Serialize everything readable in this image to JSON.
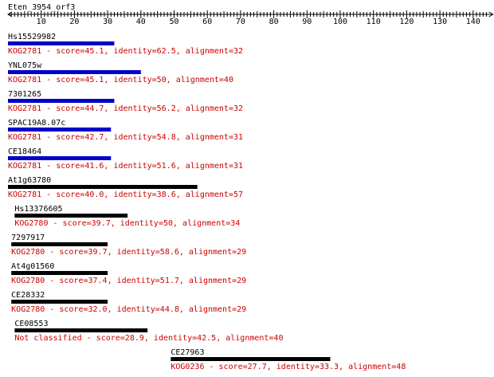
{
  "query": {
    "label": "Eten_3954_orf3"
  },
  "ruler": {
    "min": 0,
    "max": 145,
    "labels": [
      "10",
      "20",
      "30",
      "40",
      "50",
      "60",
      "70",
      "80",
      "90",
      "100",
      "110",
      "120",
      "130",
      "140"
    ],
    "label_values": [
      10,
      20,
      30,
      40,
      50,
      60,
      70,
      80,
      90,
      100,
      110,
      120,
      130,
      140
    ]
  },
  "colors": {
    "best_hit": "#0000c8",
    "other_hit": "#000000",
    "description": "#cc0000",
    "text": "#000000"
  },
  "hits": [
    {
      "name": "Hs15529982",
      "desc": "KOG2781 - score=45.1, identity=62.5, alignment=32",
      "start": 0,
      "end": 32,
      "best": true
    },
    {
      "name": "YNL075w",
      "desc": "KOG2781 - score=45.1, identity=50, alignment=40",
      "start": 0,
      "end": 40,
      "best": true
    },
    {
      "name": "7301265",
      "desc": "KOG2781 - score=44.7, identity=56.2, alignment=32",
      "start": 0,
      "end": 32,
      "best": true
    },
    {
      "name": "SPAC19A8.07c",
      "desc": "KOG2781 - score=42.7, identity=54.8, alignment=31",
      "start": 0,
      "end": 31,
      "best": true
    },
    {
      "name": "CE18464",
      "desc": "KOG2781 - score=41.6, identity=51.6, alignment=31",
      "start": 0,
      "end": 31,
      "best": true
    },
    {
      "name": "At1g63780",
      "desc": "KOG2781 - score=40.0, identity=38.6, alignment=57",
      "start": 0,
      "end": 57,
      "best": false
    },
    {
      "name": "Hs13376605",
      "desc": "KOG2780 - score=39.7, identity=50, alignment=34",
      "start": 2,
      "end": 36,
      "best": false
    },
    {
      "name": "7297917",
      "desc": "KOG2780 - score=39.7, identity=58.6, alignment=29",
      "start": 1,
      "end": 30,
      "best": false
    },
    {
      "name": "At4g01560",
      "desc": "KOG2780 - score=37.4, identity=51.7, alignment=29",
      "start": 1,
      "end": 30,
      "best": false
    },
    {
      "name": "CE28332",
      "desc": "KOG2780 - score=32.0, identity=44.8, alignment=29",
      "start": 1,
      "end": 30,
      "best": false
    },
    {
      "name": "CE08553",
      "desc": "Not classified - score=28.9, identity=42.5, alignment=40",
      "start": 2,
      "end": 42,
      "best": false
    },
    {
      "name": "CE27963",
      "desc": "KOG0236 - score=27.7, identity=33.3, alignment=48",
      "start": 49,
      "end": 97,
      "best": false
    }
  ]
}
